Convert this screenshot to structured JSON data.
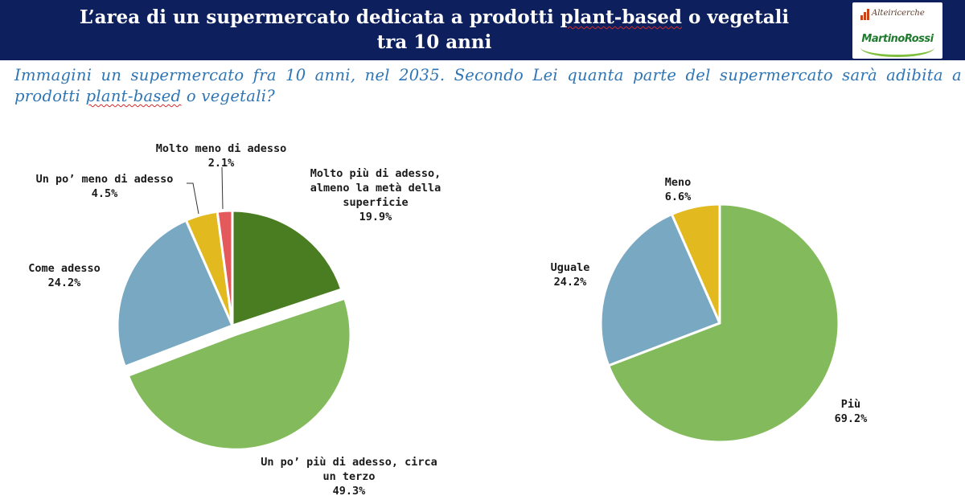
{
  "header": {
    "title_line1_a": "L’area di un supermercato dedicata a prodotti ",
    "title_line1_b": "plant-based",
    "title_line1_c": " o vegetali",
    "title_line2": "tra 10 anni"
  },
  "logo": {
    "top_text": "Alteiricerche",
    "main_text": "MartinoRossi"
  },
  "question": {
    "part1": "Immagini un supermercato fra 10 anni, nel 2035. Secondo Lei quanta parte del supermercato sarà adibita a prodotti ",
    "part2": "plant-based",
    "part3": " o vegetali?"
  },
  "colors": {
    "header_bg": "#0d1f5c",
    "question_text": "#2e75b6",
    "dark_green": "#4a7d22",
    "light_green": "#83bb5c",
    "blue_grey": "#79a8c2",
    "yellow": "#e2b91f",
    "red": "#e3595c"
  },
  "chart_data": [
    {
      "type": "pie",
      "title": "",
      "slices": [
        {
          "label_lines": [
            "Molto più di adesso,",
            "almeno la metà della",
            "superficie"
          ],
          "value": 19.9,
          "value_text": "19.9%",
          "color": "#4a7d22",
          "exploded": false
        },
        {
          "label_lines": [
            "Un po’ più di adesso, circa",
            "un terzo"
          ],
          "value": 49.3,
          "value_text": "49.3%",
          "color": "#83bb5c",
          "exploded": true
        },
        {
          "label_lines": [
            "Come adesso"
          ],
          "value": 24.2,
          "value_text": "24.2%",
          "color": "#79a8c2",
          "exploded": false
        },
        {
          "label_lines": [
            "Un po’ meno di adesso"
          ],
          "value": 4.5,
          "value_text": "4.5%",
          "color": "#e2b91f",
          "exploded": false
        },
        {
          "label_lines": [
            "Molto meno di adesso"
          ],
          "value": 2.1,
          "value_text": "2.1%",
          "color": "#e3595c",
          "exploded": false
        }
      ]
    },
    {
      "type": "pie",
      "title": "",
      "slices": [
        {
          "label_lines": [
            "Più"
          ],
          "value": 69.2,
          "value_text": "69.2%",
          "color": "#83bb5c",
          "exploded": false
        },
        {
          "label_lines": [
            "Uguale"
          ],
          "value": 24.2,
          "value_text": "24.2%",
          "color": "#79a8c2",
          "exploded": false
        },
        {
          "label_lines": [
            "Meno"
          ],
          "value": 6.6,
          "value_text": "6.6%",
          "color": "#e2b91f",
          "exploded": false
        }
      ]
    }
  ]
}
